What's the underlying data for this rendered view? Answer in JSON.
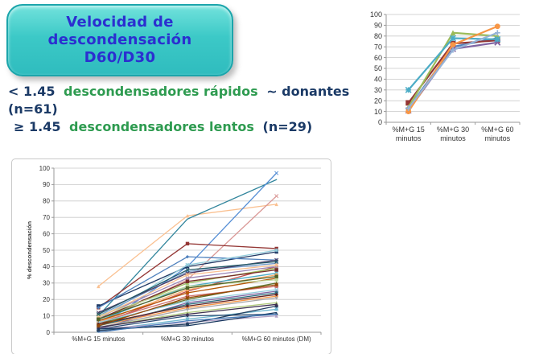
{
  "title_box": {
    "lines": [
      "Velocidad de",
      "descondensación",
      "D60/D30"
    ]
  },
  "classification": {
    "line1_prefix": "< 1.45",
    "line1_green": "descondensadores rápidos",
    "line1_suffix": "~ donantes",
    "line2": "(n=61)",
    "line3_prefix": "≥ 1.45",
    "line3_green": "descondensadores lentos",
    "line3_suffix": "(n=29)"
  },
  "colors": {
    "navy": "#1B3A66",
    "green": "#2E9B50",
    "title_blue": "#2B2FD0",
    "box_teal": "#3CC9C7",
    "box_teal_light": "#72E2DC",
    "box_teal_dark": "#2FBCBE",
    "box_border": "#1BA5AB"
  },
  "chart_data": [
    {
      "type": "line",
      "title": "",
      "xlabel": "",
      "ylabel": "",
      "categories": [
        "%M+G 15\nminutos",
        "%M+G 30\nminutos",
        "%M+G 60\nminutos"
      ],
      "ylim": [
        0,
        100
      ],
      "ytick_step": 10,
      "grid": true,
      "legend": "none",
      "series": [
        {
          "color": "#4F81BD",
          "marker": "diamond",
          "values": [
            13,
            70,
            78
          ]
        },
        {
          "color": "#943634",
          "marker": "square",
          "values": [
            18,
            73,
            76
          ]
        },
        {
          "color": "#9BBB59",
          "marker": "triangle",
          "values": [
            14,
            83,
            80
          ]
        },
        {
          "color": "#8064A2",
          "marker": "x",
          "values": [
            11,
            68,
            74
          ]
        },
        {
          "color": "#4BACC6",
          "marker": "asterisk",
          "values": [
            30,
            78,
            77
          ]
        },
        {
          "color": "#F79646",
          "marker": "circle",
          "values": [
            10,
            72,
            89
          ]
        },
        {
          "color": "#95B3D7",
          "marker": "plus",
          "values": [
            13,
            67,
            83
          ]
        }
      ]
    },
    {
      "type": "line",
      "title": "",
      "xlabel": "",
      "ylabel": "% descondensación",
      "categories": [
        "%M+G 15 minutos",
        "%M+G 30 minutos",
        "%M+G 60 minutos (DM)"
      ],
      "ylim": [
        0,
        100
      ],
      "ytick_step": 10,
      "grid": true,
      "legend": "none",
      "series": [
        {
          "color": "#FAC090",
          "marker": "triangle",
          "values": [
            28,
            71,
            78
          ]
        },
        {
          "color": "#D99694",
          "marker": "x",
          "values": [
            6,
            32,
            83
          ]
        },
        {
          "color": "#31859C",
          "marker": "none",
          "values": [
            10,
            69,
            93
          ]
        },
        {
          "color": "#558ED5",
          "marker": "x",
          "values": [
            3,
            40,
            97
          ]
        },
        {
          "color": "#943634",
          "marker": "square",
          "values": [
            15,
            54,
            51
          ]
        },
        {
          "color": "#1F3864",
          "marker": "square",
          "values": [
            16,
            40,
            49
          ]
        },
        {
          "color": "#4F81BD",
          "marker": "diamond",
          "values": [
            15,
            46,
            44
          ]
        },
        {
          "color": "#92CDDC",
          "marker": "asterisk",
          "values": [
            8,
            41,
            50
          ]
        },
        {
          "color": "#C0504D",
          "marker": "circle",
          "values": [
            5,
            25,
            40
          ]
        },
        {
          "color": "#9BBB59",
          "marker": "triangle",
          "values": [
            8,
            30,
            39
          ]
        },
        {
          "color": "#8064A2",
          "marker": "x",
          "values": [
            2,
            18,
            25
          ]
        },
        {
          "color": "#4BACC6",
          "marker": "asterisk",
          "values": [
            7,
            28,
            36
          ]
        },
        {
          "color": "#F79646",
          "marker": "circle",
          "values": [
            4,
            15,
            22
          ]
        },
        {
          "color": "#729ACA",
          "marker": "diamond",
          "values": [
            10,
            37,
            42
          ]
        },
        {
          "color": "#CD7371",
          "marker": "square",
          "values": [
            6,
            22,
            28
          ]
        },
        {
          "color": "#AFC97A",
          "marker": "triangle",
          "values": [
            3,
            12,
            18
          ]
        },
        {
          "color": "#9983B5",
          "marker": "x",
          "values": [
            9,
            33,
            40
          ]
        },
        {
          "color": "#6FB7CF",
          "marker": "asterisk",
          "values": [
            1,
            8,
            14
          ]
        },
        {
          "color": "#F9AC6B",
          "marker": "circle",
          "values": [
            6,
            26,
            35
          ]
        },
        {
          "color": "#2C4D75",
          "marker": "diamond",
          "values": [
            2,
            10,
            11
          ]
        },
        {
          "color": "#772C2A",
          "marker": "square",
          "values": [
            8,
            31,
            38
          ]
        },
        {
          "color": "#5F7530",
          "marker": "triangle",
          "values": [
            5,
            20,
            30
          ]
        },
        {
          "color": "#4D3B62",
          "marker": "x",
          "values": [
            12,
            36,
            44
          ]
        },
        {
          "color": "#276A7C",
          "marker": "asterisk",
          "values": [
            4,
            17,
            24
          ]
        },
        {
          "color": "#B65708",
          "marker": "circle",
          "values": [
            7,
            24,
            33
          ]
        },
        {
          "color": "#A6A6A6",
          "marker": "diamond",
          "values": [
            3,
            14,
            21
          ]
        },
        {
          "color": "#C3D69B",
          "marker": "square",
          "values": [
            10,
            28,
            32
          ]
        },
        {
          "color": "#B2A2C7",
          "marker": "triangle",
          "values": [
            2,
            6,
            10
          ]
        },
        {
          "color": "#92CDDC",
          "marker": "x",
          "values": [
            6,
            19,
            26
          ]
        },
        {
          "color": "#FABF8F",
          "marker": "asterisk",
          "values": [
            9,
            35,
            41
          ]
        },
        {
          "color": "#254061",
          "marker": "circle",
          "values": [
            1,
            5,
            16
          ]
        },
        {
          "color": "#632423",
          "marker": "diamond",
          "values": [
            5,
            16,
            23
          ]
        },
        {
          "color": "#4F6228",
          "marker": "square",
          "values": [
            8,
            27,
            34
          ]
        },
        {
          "color": "#3F3151",
          "marker": "triangle",
          "values": [
            3,
            11,
            17
          ]
        },
        {
          "color": "#205867",
          "marker": "x",
          "values": [
            11,
            38,
            43
          ]
        },
        {
          "color": "#974806",
          "marker": "asterisk",
          "values": [
            4,
            21,
            29
          ]
        },
        {
          "color": "#17375E",
          "marker": "none",
          "values": [
            2,
            4,
            12
          ]
        },
        {
          "color": "#4A7EBB",
          "marker": "none",
          "values": [
            0,
            7,
            11
          ]
        }
      ]
    }
  ]
}
